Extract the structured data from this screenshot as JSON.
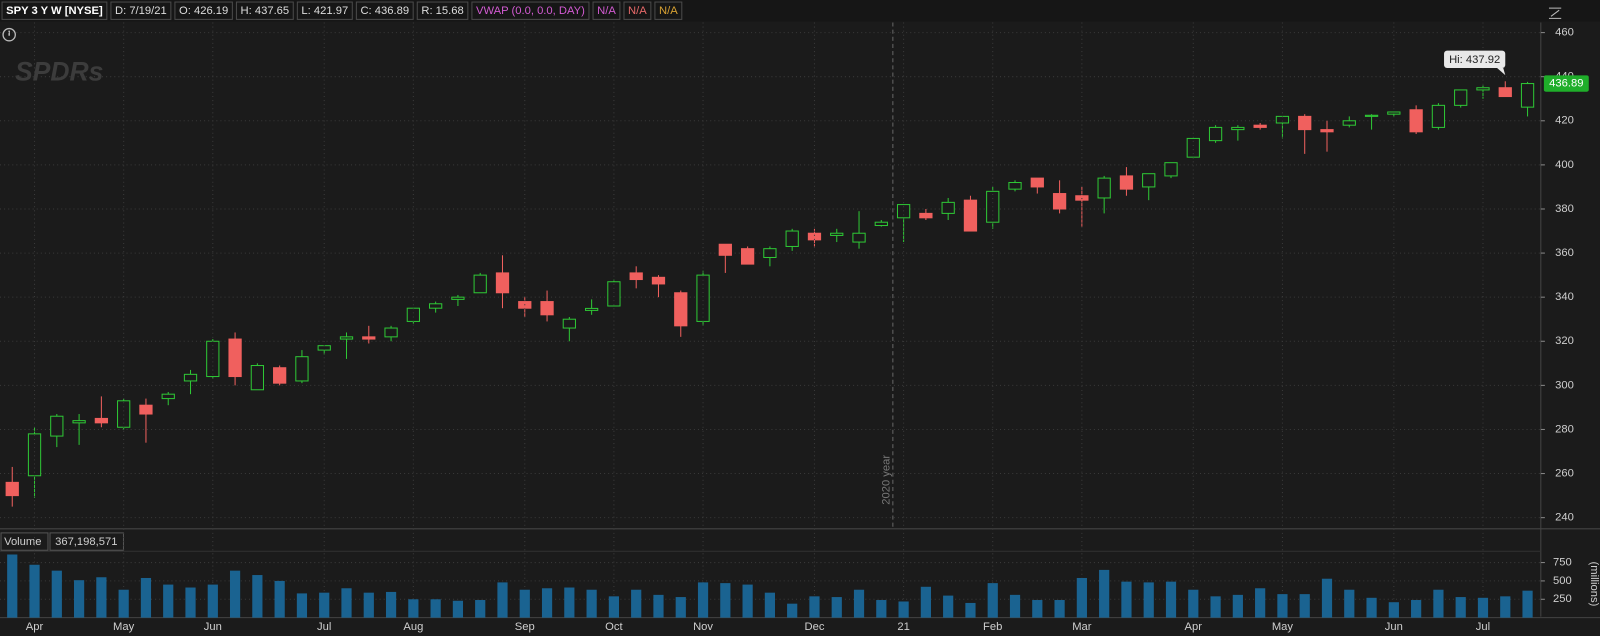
{
  "header": {
    "symbol": "SPY 3 Y W [NYSE]",
    "date": "D: 7/19/21",
    "open": "O: 426.19",
    "high": "H: 437.65",
    "low": "L: 421.97",
    "close": "C: 436.89",
    "range": "R: 15.68",
    "study": "VWAP (0.0, 0.0, DAY)",
    "study_values": [
      "N/A",
      "N/A",
      "N/A"
    ],
    "watermark": "SPDRs"
  },
  "chart_data": [
    {
      "type": "candlestick",
      "title": "SPY",
      "categories": [
        null,
        "Apr",
        null,
        null,
        null,
        "May",
        null,
        null,
        null,
        "Jun",
        null,
        null,
        null,
        null,
        "Jul",
        null,
        null,
        null,
        "Aug",
        null,
        null,
        null,
        null,
        "Sep",
        null,
        null,
        null,
        "Oct",
        null,
        null,
        null,
        "Nov",
        null,
        null,
        null,
        null,
        "Dec",
        null,
        null,
        null,
        "21",
        null,
        null,
        null,
        "Feb",
        null,
        null,
        null,
        "Mar",
        null,
        null,
        null,
        null,
        "Apr",
        null,
        null,
        null,
        "May",
        null,
        null,
        null,
        null,
        "Jun",
        null,
        null,
        null,
        "Jul",
        null,
        null
      ],
      "open": [
        256,
        259,
        277,
        283,
        285,
        281,
        291,
        294,
        302,
        304,
        321,
        298,
        308,
        302,
        316,
        321,
        322,
        322,
        329,
        335,
        339,
        342,
        351,
        338,
        338,
        326,
        334,
        336,
        351,
        349,
        342,
        329,
        364,
        362,
        358,
        363,
        369,
        368,
        365,
        372.5,
        376,
        378,
        378,
        384,
        374,
        389,
        394,
        387,
        386,
        385,
        395,
        390,
        395,
        403.5,
        411,
        416,
        418,
        419,
        422,
        416,
        418,
        422,
        423,
        425,
        417,
        427,
        434,
        435,
        426.19
      ],
      "high": [
        263,
        281,
        287,
        287,
        295,
        294,
        294,
        297,
        307,
        321,
        324,
        310,
        309,
        316,
        318,
        324,
        327,
        327,
        335,
        338,
        341,
        351,
        359,
        340,
        343,
        331,
        339,
        348,
        354,
        350,
        343,
        352,
        364,
        363,
        363,
        371,
        371,
        371,
        379,
        375,
        382,
        380,
        385,
        386,
        390,
        393,
        394,
        393,
        390,
        395,
        399,
        396,
        401,
        412,
        418,
        418,
        419,
        422,
        423,
        420,
        422,
        423,
        424,
        427,
        428,
        434,
        436,
        437.92,
        437.65
      ],
      "low": [
        245,
        249,
        272,
        273,
        281,
        280,
        274,
        291,
        296,
        303,
        300,
        298,
        300,
        301,
        314,
        312,
        319,
        320,
        328,
        333,
        336,
        342,
        335,
        331,
        329,
        320,
        332,
        336,
        344,
        340,
        322,
        327,
        351,
        355,
        354,
        361,
        363,
        365,
        362,
        372,
        365,
        375,
        375,
        370,
        371,
        388,
        387,
        378,
        372,
        378,
        386,
        384,
        394,
        403,
        410,
        411,
        416,
        412,
        405,
        406,
        417,
        416,
        422,
        414,
        416,
        426,
        430,
        431,
        421.97
      ],
      "close": [
        250,
        278,
        286,
        284,
        283,
        293,
        287,
        296,
        305,
        320,
        304,
        309,
        301,
        313,
        318,
        322,
        321,
        326,
        335,
        337,
        340,
        350,
        342,
        335,
        332,
        330,
        334.9,
        347,
        348,
        346,
        327,
        350,
        359,
        355,
        362,
        370,
        366,
        369,
        369,
        374,
        382,
        376,
        383,
        370,
        388,
        392,
        390,
        380,
        384,
        394,
        389,
        396,
        401,
        412,
        417,
        417,
        417,
        422,
        416,
        415,
        420,
        422.5,
        424,
        415,
        427,
        434,
        435,
        431,
        436.89
      ],
      "up_color": "#2ec735",
      "down_color": "#f0605e",
      "ylim": [
        235.4,
        464.6
      ],
      "yticks": [
        240,
        260,
        280,
        300,
        320,
        340,
        360,
        380,
        400,
        420,
        440,
        460
      ],
      "grid": true,
      "annotations": [
        {
          "text": "Hi: 437.92"
        },
        {
          "text": "436.89"
        },
        {
          "text": "2020 year"
        }
      ]
    },
    {
      "type": "bar",
      "title": "Volume",
      "subtitle": "367,198,571",
      "y2_label": "(millions)",
      "values": [
        860,
        720,
        640,
        510,
        550,
        380,
        540,
        450,
        410,
        450,
        640,
        580,
        500,
        330,
        340,
        400,
        340,
        350,
        250,
        250,
        230,
        240,
        480,
        380,
        400,
        410,
        380,
        290,
        380,
        310,
        280,
        480,
        470,
        450,
        340,
        190,
        290,
        280,
        380,
        240,
        220,
        420,
        300,
        200,
        470,
        310,
        240,
        240,
        540,
        650,
        490,
        480,
        490,
        380,
        290,
        310,
        400,
        320,
        320,
        530,
        380,
        270,
        210,
        240,
        380,
        280,
        270,
        290,
        367.198571
      ],
      "color": "#1a6391",
      "ylim": [
        0,
        890
      ],
      "yticks": [
        250,
        500,
        750
      ],
      "grid": true
    }
  ]
}
